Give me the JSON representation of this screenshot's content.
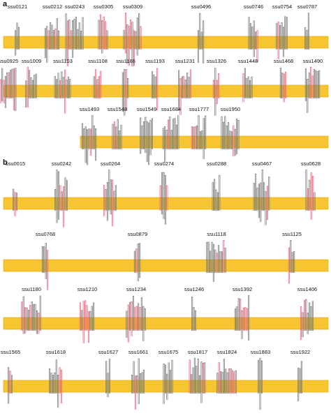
{
  "panels": [
    {
      "label": "a",
      "rows": [
        {
          "proteins": [
            "ssu0121",
            "ssu0212",
            "ssu0243",
            "ssu0305",
            "ssu0309",
            "ssu0496",
            "ssu0746",
            "ssu0754",
            "ssu0787"
          ]
        },
        {
          "proteins": [
            "ssu0925",
            "ssu1009",
            "ssu1103",
            "ssu1108",
            "ssu1186",
            "ssu1193",
            "ssu1231",
            "ssu1326",
            "ssu1448",
            "ssu1468",
            "ssu1490"
          ]
        },
        {
          "proteins": [
            "ssu1493",
            "ssu1548",
            "ssu1549",
            "ssu1684",
            "ssu1777",
            "ssu1950"
          ]
        }
      ]
    },
    {
      "label": "b",
      "rows": [
        {
          "proteins": [
            "ssu0015",
            "ssu0242",
            "ssu0264",
            "ssu0274",
            "ssu0288",
            "ssu0467",
            "ssu0628"
          ]
        },
        {
          "proteins": [
            "ssu0768",
            "ssu0879",
            "ssu1118",
            "ssu1125"
          ]
        },
        {
          "proteins": [
            "ssu1180",
            "ssu1210",
            "ssu1234",
            "ssu1246",
            "ssu1392",
            "ssu1406"
          ]
        },
        {
          "proteins": [
            "ssu1565",
            "ssu1618",
            "ssu1627",
            "ssu1661",
            "ssu1675",
            "ssu1817",
            "ssu1824",
            "ssu1883",
            "ssu1922"
          ]
        }
      ]
    }
  ]
}
